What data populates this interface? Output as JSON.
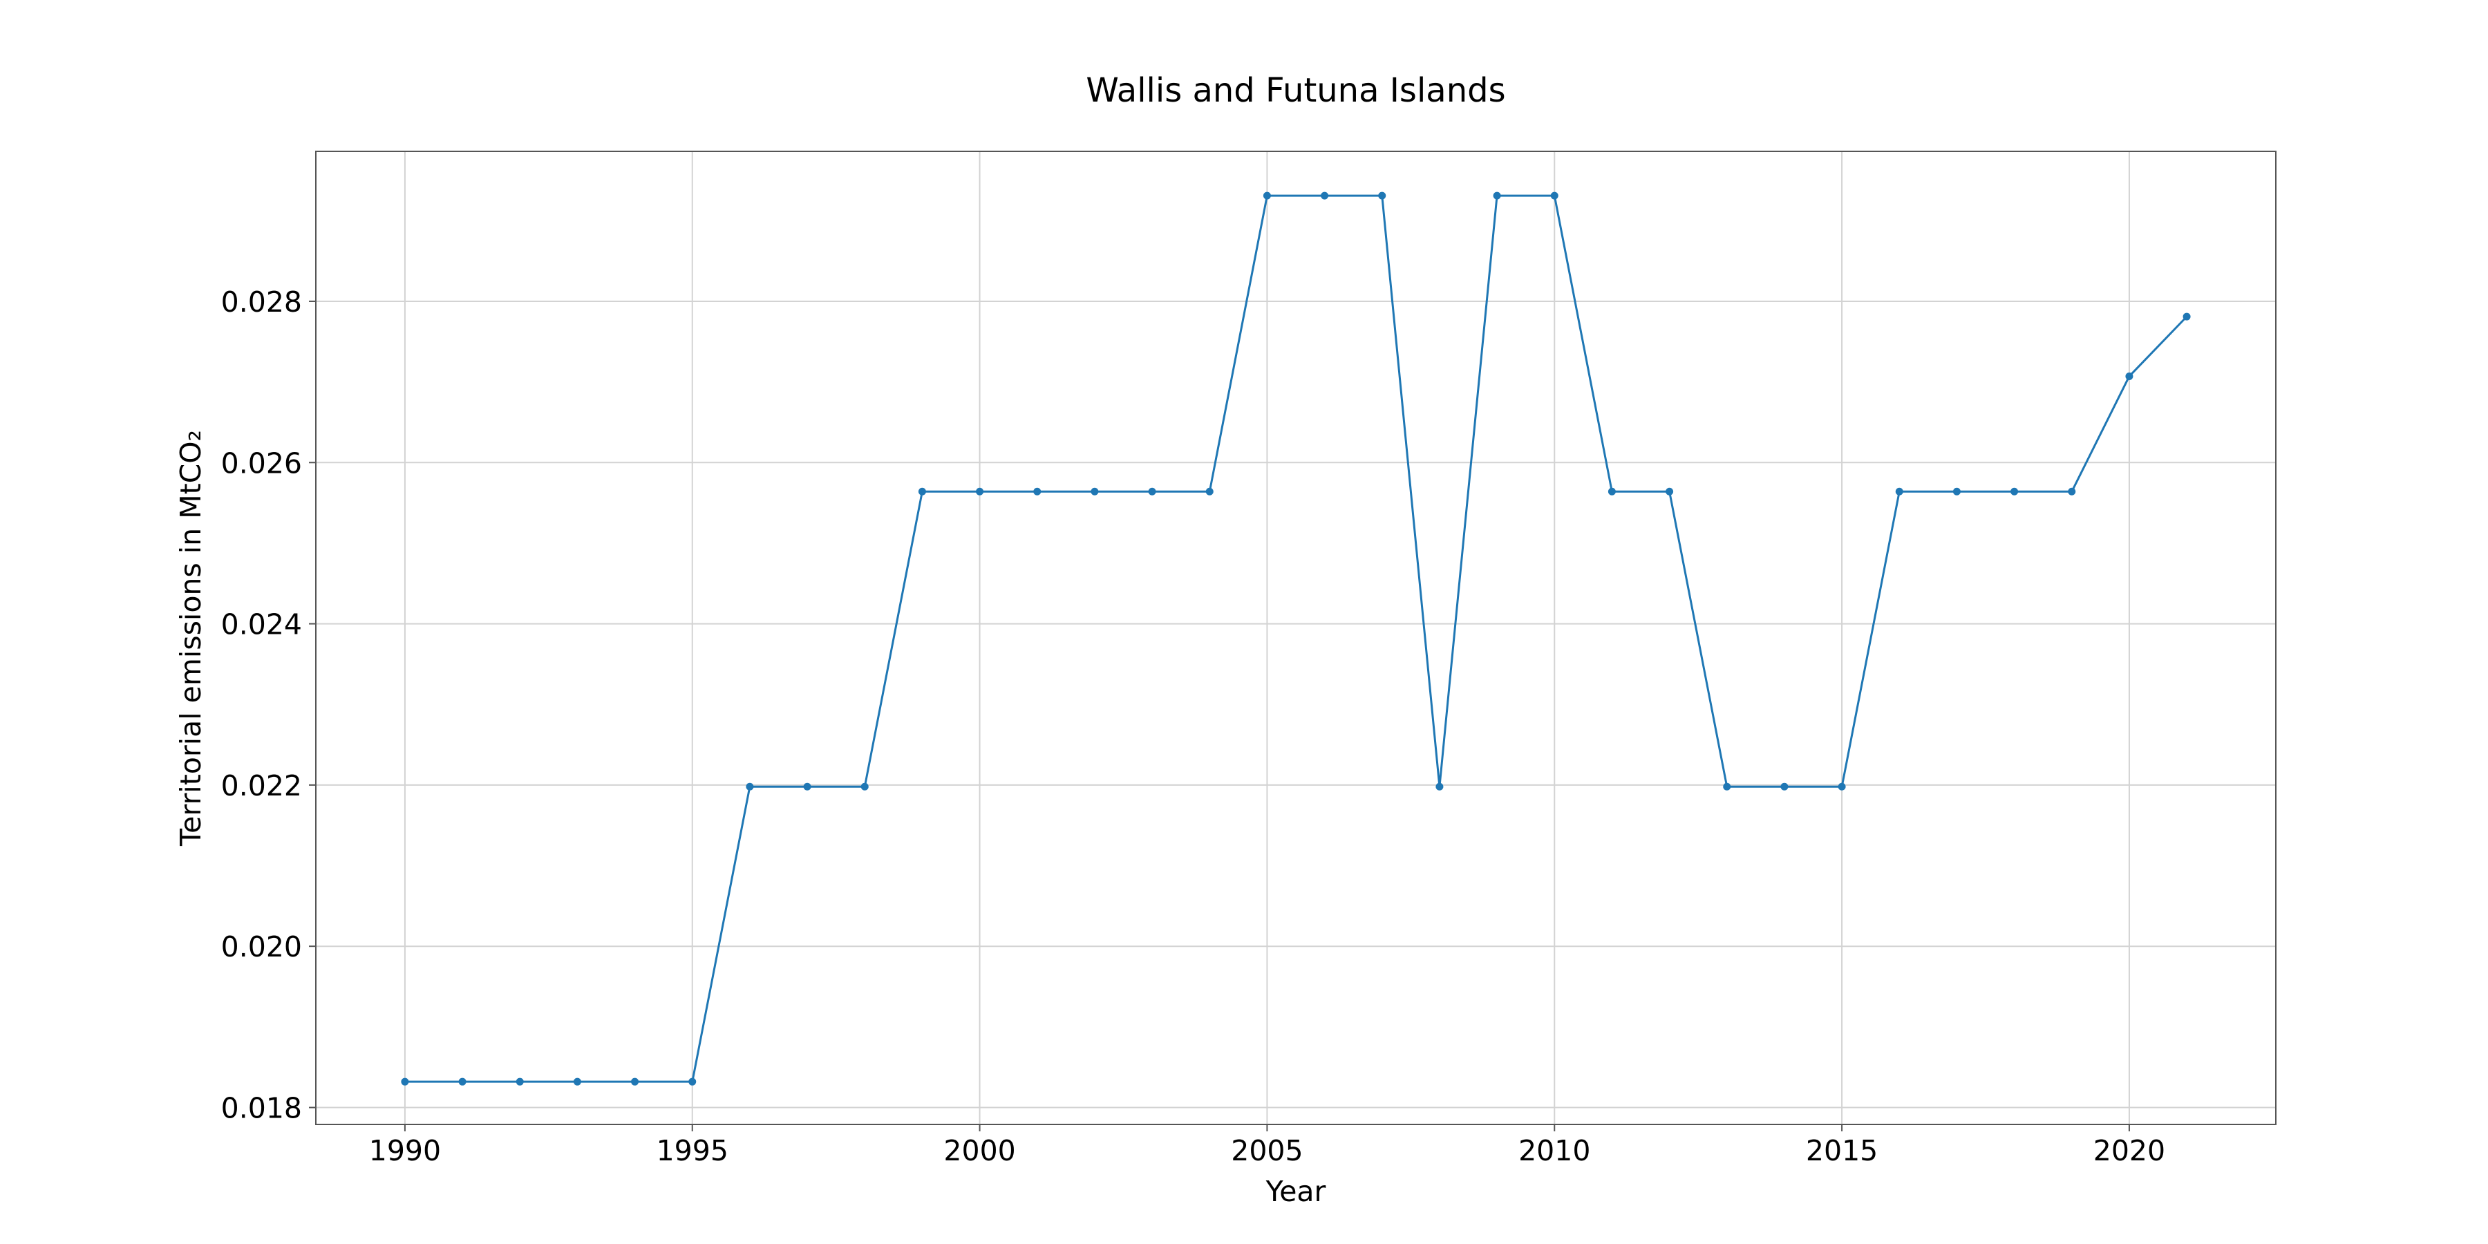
{
  "chart_data": {
    "type": "line",
    "title": "Wallis and Futuna Islands",
    "xlabel": "Year",
    "ylabel": "Territorial emissions in MtCO₂",
    "x": [
      1990,
      1991,
      1992,
      1993,
      1994,
      1995,
      1996,
      1997,
      1998,
      1999,
      2000,
      2001,
      2002,
      2003,
      2004,
      2005,
      2006,
      2007,
      2008,
      2009,
      2010,
      2011,
      2012,
      2013,
      2014,
      2015,
      2016,
      2017,
      2018,
      2019,
      2020,
      2021
    ],
    "series": [
      {
        "values": [
          0.01832,
          0.01832,
          0.01832,
          0.01832,
          0.01832,
          0.01832,
          0.02198,
          0.02198,
          0.02198,
          0.02564,
          0.02564,
          0.02564,
          0.02564,
          0.02564,
          0.02564,
          0.02931,
          0.02931,
          0.02931,
          0.02198,
          0.02931,
          0.02931,
          0.02564,
          0.02564,
          0.02198,
          0.02198,
          0.02198,
          0.02564,
          0.02564,
          0.02564,
          0.02564,
          0.02707,
          0.02781
        ],
        "color": "#1f77b4"
      }
    ],
    "xlim": [
      1988.45,
      2022.55
    ],
    "ylim": [
      0.01779,
      0.02986
    ],
    "xticks": [
      1990,
      1995,
      2000,
      2005,
      2010,
      2015,
      2020
    ],
    "yticks": [
      0.018,
      0.02,
      0.022,
      0.024,
      0.026,
      0.028
    ],
    "ytick_labels": [
      "0.018",
      "0.020",
      "0.022",
      "0.024",
      "0.026",
      "0.028"
    ],
    "grid": true,
    "legend": "none"
  }
}
